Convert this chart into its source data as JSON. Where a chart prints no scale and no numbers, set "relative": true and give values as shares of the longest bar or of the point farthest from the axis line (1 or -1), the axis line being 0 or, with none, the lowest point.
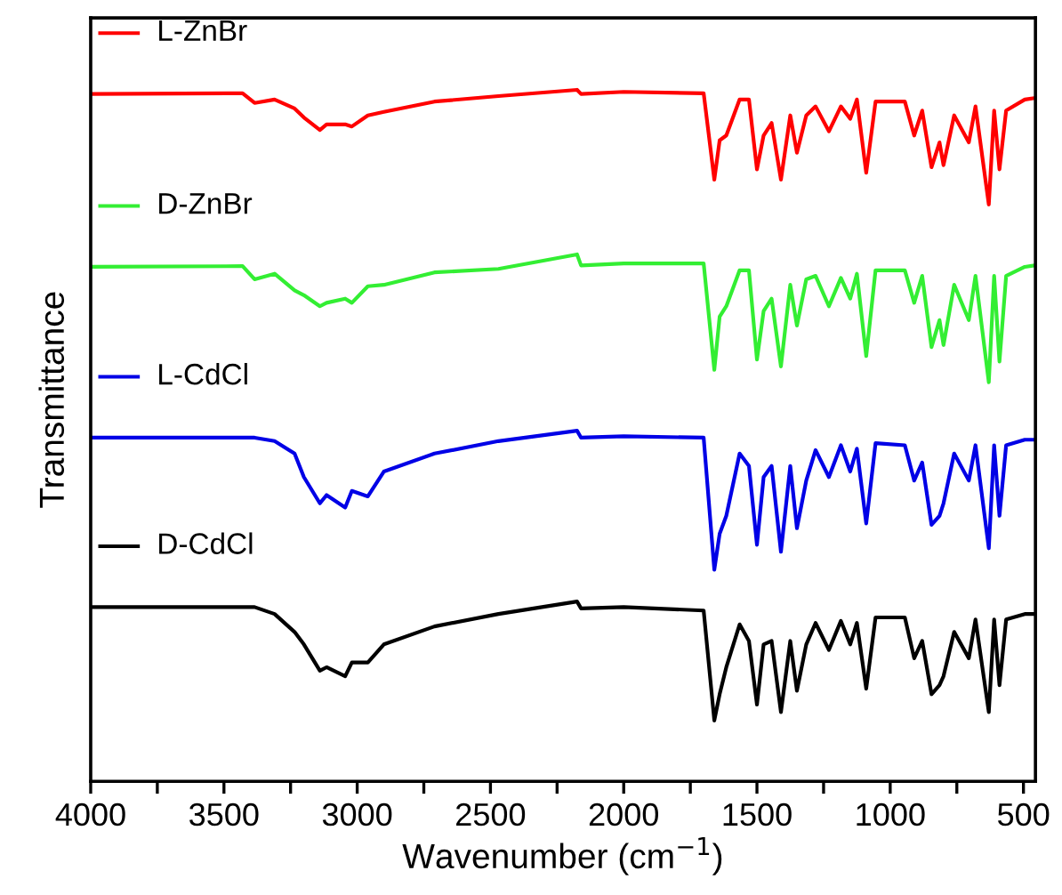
{
  "chart_data": {
    "type": "line",
    "relative": true,
    "xlabel": "Wavenumber (cm$^{−1}$)",
    "ylabel": "Transmittance",
    "xlim": [
      4000,
      455
    ],
    "xticks": [
      4000,
      {
        "value": 3750,
        "label": null
      },
      3500,
      {
        "value": 3250,
        "label": null
      },
      3000,
      {
        "value": 2750,
        "label": null
      },
      2500,
      {
        "value": 2250,
        "label": null
      },
      2000,
      {
        "value": 1750,
        "label": null
      },
      1500,
      {
        "value": 1250,
        "label": null
      },
      1000,
      {
        "value": 750,
        "label": null
      },
      500
    ],
    "tick_labels": "x",
    "grid": false,
    "legend": "top left",
    "marker": "none",
    "line_style": "solid",
    "x": [
      4000,
      3430,
      3385,
      3310,
      3235,
      3200,
      3140,
      3115,
      3045,
      3020,
      2960,
      2900,
      2710,
      2470,
      2175,
      2160,
      2000,
      1700,
      1660,
      1640,
      1615,
      1565,
      1530,
      1500,
      1475,
      1445,
      1410,
      1375,
      1350,
      1315,
      1280,
      1230,
      1185,
      1150,
      1125,
      1090,
      1055,
      945,
      910,
      880,
      845,
      815,
      800,
      760,
      705,
      680,
      630,
      610,
      590,
      565,
      495,
      460
    ],
    "series": [
      {
        "name": "L-ZnBr",
        "color": "#ff0000",
        "values": [
          0.994,
          0.995,
          0.981,
          0.986,
          0.973,
          0.96,
          0.942,
          0.95,
          0.95,
          0.947,
          0.963,
          0.968,
          0.983,
          0.991,
          1.0,
          0.994,
          0.997,
          0.995,
          0.87,
          0.927,
          0.934,
          0.986,
          0.986,
          0.885,
          0.934,
          0.952,
          0.87,
          0.963,
          0.909,
          0.963,
          0.976,
          0.94,
          0.976,
          0.958,
          0.986,
          0.88,
          0.983,
          0.983,
          0.934,
          0.97,
          0.888,
          0.924,
          0.891,
          0.963,
          0.924,
          0.976,
          0.834,
          0.97,
          0.885,
          0.97,
          0.986,
          0.988
        ]
      },
      {
        "name": "D-ZnBr",
        "color": "#33ee33",
        "values": [
          0.744,
          0.745,
          0.726,
          0.734,
          0.71,
          0.703,
          0.687,
          0.692,
          0.698,
          0.692,
          0.716,
          0.718,
          0.736,
          0.741,
          0.762,
          0.746,
          0.749,
          0.749,
          0.595,
          0.672,
          0.687,
          0.739,
          0.739,
          0.61,
          0.68,
          0.698,
          0.6,
          0.718,
          0.659,
          0.726,
          0.731,
          0.687,
          0.728,
          0.698,
          0.734,
          0.615,
          0.739,
          0.739,
          0.692,
          0.731,
          0.628,
          0.667,
          0.631,
          0.718,
          0.667,
          0.731,
          0.577,
          0.731,
          0.607,
          0.731,
          0.744,
          0.746
        ]
      },
      {
        "name": "L-CdCl",
        "color": "#0000e6",
        "values": [
          0.497,
          0.497,
          0.497,
          0.492,
          0.474,
          0.44,
          0.402,
          0.414,
          0.396,
          0.42,
          0.412,
          0.448,
          0.474,
          0.492,
          0.507,
          0.497,
          0.499,
          0.497,
          0.306,
          0.358,
          0.384,
          0.474,
          0.456,
          0.342,
          0.44,
          0.456,
          0.332,
          0.456,
          0.366,
          0.435,
          0.479,
          0.44,
          0.486,
          0.448,
          0.481,
          0.373,
          0.489,
          0.486,
          0.435,
          0.461,
          0.371,
          0.384,
          0.402,
          0.474,
          0.435,
          0.486,
          0.337,
          0.486,
          0.384,
          0.486,
          0.494,
          0.494
        ]
      },
      {
        "name": "D-CdCl",
        "color": "#000000",
        "values": [
          0.252,
          0.252,
          0.252,
          0.242,
          0.216,
          0.198,
          0.16,
          0.165,
          0.152,
          0.172,
          0.172,
          0.198,
          0.224,
          0.242,
          0.26,
          0.25,
          0.252,
          0.247,
          0.088,
          0.126,
          0.165,
          0.227,
          0.203,
          0.111,
          0.198,
          0.203,
          0.1,
          0.203,
          0.131,
          0.198,
          0.229,
          0.19,
          0.232,
          0.198,
          0.229,
          0.134,
          0.237,
          0.237,
          0.178,
          0.203,
          0.126,
          0.139,
          0.152,
          0.216,
          0.178,
          0.234,
          0.1,
          0.234,
          0.139,
          0.234,
          0.242,
          0.242
        ]
      }
    ]
  }
}
